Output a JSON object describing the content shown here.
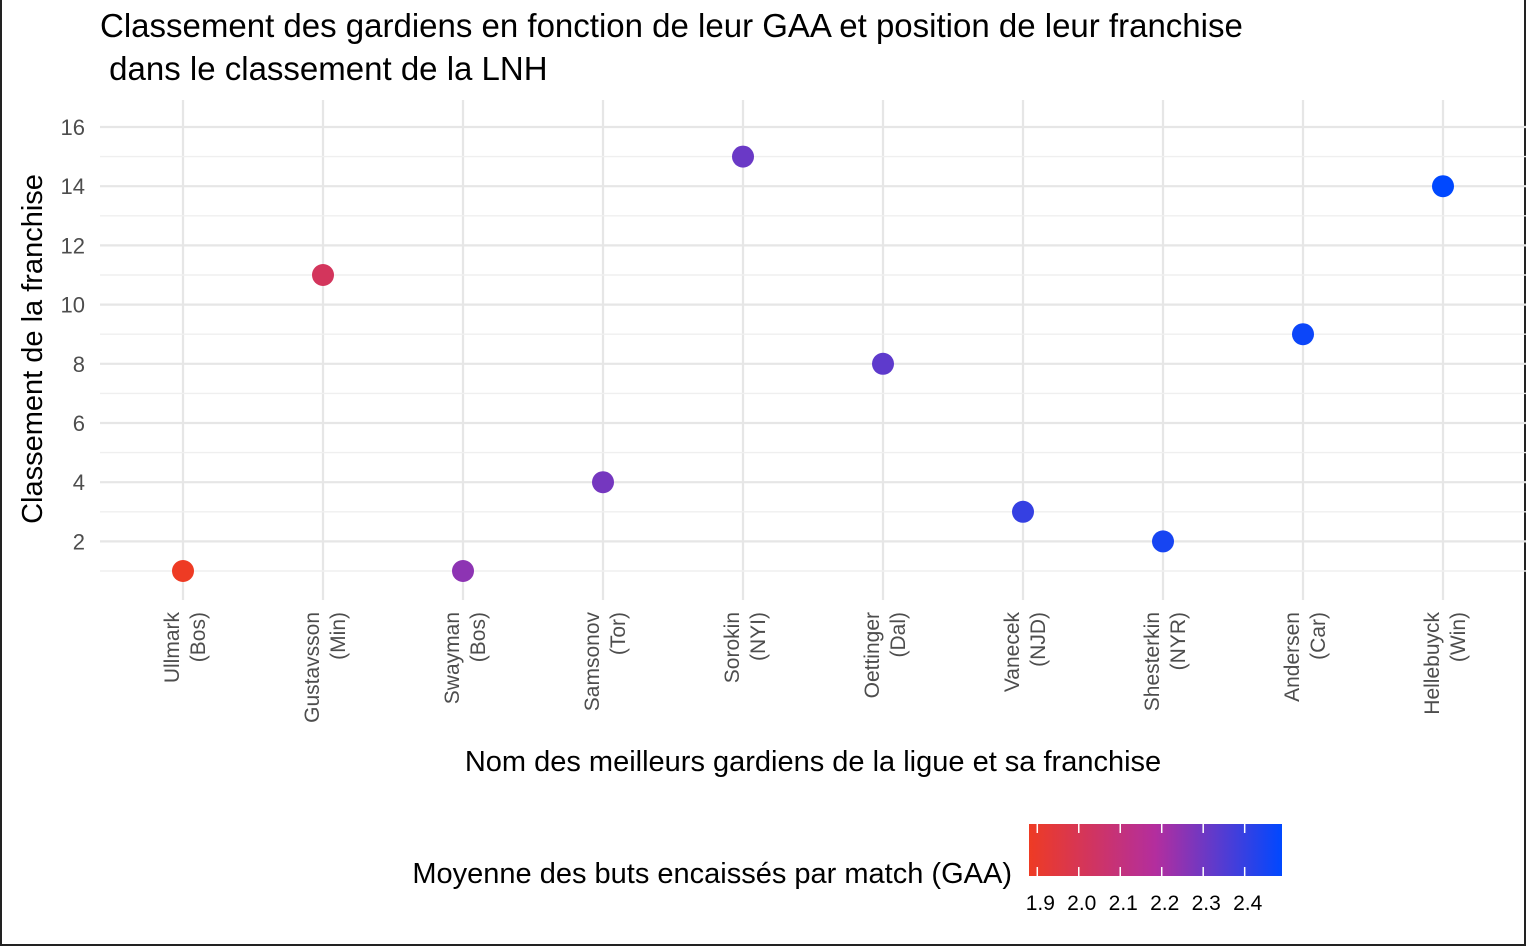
{
  "chart_data": {
    "type": "scatter",
    "title_lines": [
      "Classement des gardiens en fonction de leur GAA et position de leur franchise",
      " dans le classement de la LNH"
    ],
    "xlabel": "Nom des meilleurs gardiens de la ligue et sa franchise",
    "ylabel": "Classement de la franchise",
    "categories": [
      [
        "Ullmark",
        "(Bos)"
      ],
      [
        "Gustavsson",
        "(Min)"
      ],
      [
        "Swayman",
        "(Bos)"
      ],
      [
        "Samsonov",
        "(Tor)"
      ],
      [
        "Sorokin",
        "(NYI)"
      ],
      [
        "Oettinger",
        "(Dal)"
      ],
      [
        "Vanecek",
        "(NJD)"
      ],
      [
        "Shesterkin",
        "(NYR)"
      ],
      [
        "Andersen",
        "(Car)"
      ],
      [
        "Hellebuyck",
        "(Win)"
      ]
    ],
    "y": [
      1,
      11,
      1,
      4,
      15,
      8,
      3,
      2,
      9,
      14
    ],
    "gaa": [
      1.88,
      2.02,
      2.25,
      2.29,
      2.31,
      2.33,
      2.4,
      2.45,
      2.47,
      2.49
    ],
    "yticks": [
      2,
      4,
      6,
      8,
      10,
      12,
      14,
      16
    ],
    "ylim": [
      0.2,
      16.8
    ],
    "grid": true,
    "legend": {
      "position": "bottom",
      "title": "Moyenne des buts encaissés par match (GAA)",
      "ticks": [
        "1.9",
        "2.0",
        "2.1",
        "2.2",
        "2.3",
        "2.4"
      ],
      "tick_values": [
        1.9,
        2.0,
        2.1,
        2.2,
        2.3,
        2.4
      ],
      "range": [
        1.88,
        2.49
      ],
      "low_color": "#ee3b24",
      "high_color": "#0048ff"
    }
  }
}
